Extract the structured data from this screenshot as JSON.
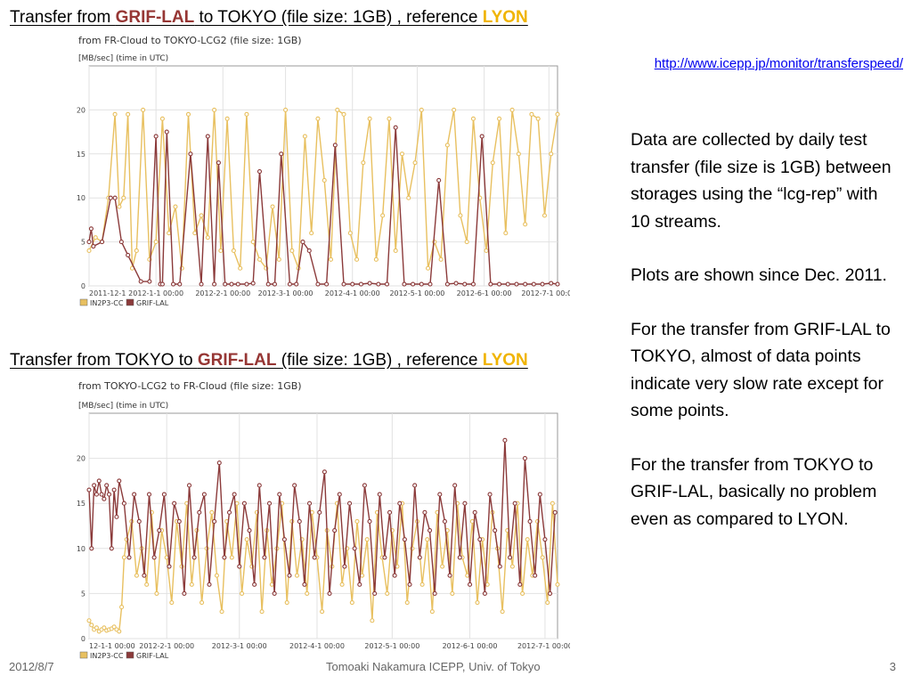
{
  "headings": [
    {
      "before": "Transfer from ",
      "em1": "GRIF-LAL",
      "middle": " to TOKYO (file size: 1GB) , reference ",
      "em2": "LYON"
    },
    {
      "before": "Transfer from TOKYO to ",
      "em1": "GRIF-LAL",
      "middle": " (file size: 1GB) , reference ",
      "em2": "LYON"
    }
  ],
  "link": {
    "text": "http://www.icepp.jp/monitor/transferspeed/"
  },
  "notes": [
    "Data are collected by daily test transfer (file size is 1GB) between storages using the “lcg-rep” with 10 streams.",
    "Plots are shown since Dec. 2011.",
    "For the transfer from GRIF-LAL to TOKYO, almost of data points indicate very slow rate except for some points.",
    "For the transfer from TOKYO to GRIF-LAL, basically no problem even as compared to LYON."
  ],
  "footer": {
    "date": "2012/8/7",
    "author": "Tomoaki Nakamura     ICEPP, Univ. of Tokyo",
    "page": "3"
  },
  "colors": {
    "in2p3": "#e8c060",
    "grif": "#8b3a3a",
    "grid": "#e2e2e2",
    "accent_grif": "#963634",
    "accent_lyon": "#f0b400"
  },
  "chart_data": [
    {
      "type": "line",
      "title": "from FR-Cloud to TOKYO-LCG2 (file size: 1GB)",
      "ylabel": "[MB/sec] (time in UTC)",
      "ylim": [
        0,
        25
      ],
      "yticks": [
        0,
        5,
        10,
        15,
        20
      ],
      "xticks": [
        "2011-12-1",
        "2012-1-1 00:00",
        "2012-2-1 00:00",
        "2012-3-1 00:00",
        "2012-4-1 00:00",
        "2012-5-1 00:00",
        "2012-6-1 00:00",
        "2012-7-1 00:00"
      ],
      "xtick_days": [
        0,
        31,
        62,
        91,
        122,
        152,
        183,
        213
      ],
      "x_days_span": 217,
      "grid": true,
      "legend_position": "bottom-left",
      "series": [
        {
          "name": "IN2P3-CC",
          "color": "#e8c060",
          "x": [
            0,
            3,
            6,
            9,
            12,
            14,
            16,
            18,
            20,
            22,
            25,
            28,
            31,
            34,
            37,
            40,
            43,
            46,
            49,
            52,
            55,
            58,
            61,
            64,
            67,
            70,
            73,
            76,
            79,
            82,
            85,
            88,
            91,
            94,
            97,
            100,
            103,
            106,
            109,
            112,
            115,
            118,
            121,
            124,
            127,
            130,
            133,
            136,
            139,
            142,
            145,
            148,
            151,
            154,
            157,
            160,
            163,
            166,
            169,
            172,
            175,
            178,
            181,
            184,
            187,
            190,
            193,
            196,
            199,
            202,
            205,
            208,
            211,
            214,
            217
          ],
          "values": [
            4,
            5.5,
            5,
            10,
            19.5,
            9,
            10,
            19.5,
            2,
            4,
            20,
            3,
            5,
            19,
            6,
            9,
            2,
            19.5,
            6,
            8,
            5.5,
            20,
            4,
            19,
            4,
            2,
            19.5,
            5,
            3,
            2,
            9,
            3,
            20,
            4,
            2,
            17,
            6,
            19,
            12,
            3,
            20,
            19.5,
            6,
            3,
            14,
            19,
            3,
            8,
            19,
            4,
            15,
            10,
            14,
            20,
            2,
            5,
            3,
            16,
            20,
            8,
            5,
            19,
            10,
            4,
            14,
            19,
            6,
            20,
            15,
            7,
            19.5,
            19,
            8,
            15,
            19.5
          ]
        },
        {
          "name": "GRIF-LAL",
          "color": "#8b3a3a",
          "x": [
            0,
            1,
            2,
            6,
            10,
            12,
            15,
            18,
            24,
            28,
            31,
            33,
            34,
            36,
            39,
            42,
            47,
            52,
            55,
            58,
            60,
            63,
            66,
            69,
            73,
            76,
            79,
            83,
            86,
            89,
            93,
            96,
            99,
            102,
            106,
            110,
            114,
            118,
            122,
            126,
            130,
            134,
            138,
            142,
            146,
            150,
            154,
            158,
            162,
            166,
            170,
            174,
            178,
            182,
            186,
            190,
            194,
            198,
            202,
            206,
            210,
            214,
            217
          ],
          "values": [
            5,
            6.5,
            4.5,
            5,
            10,
            10,
            5,
            3.5,
            0.5,
            0.5,
            17,
            0.2,
            0.2,
            17.5,
            0.2,
            0.2,
            15,
            0.2,
            17,
            0.2,
            14,
            0.2,
            0.2,
            0.2,
            0.2,
            0.3,
            13,
            0.2,
            0.2,
            15,
            0.2,
            0.2,
            5,
            4,
            0.2,
            0.2,
            16,
            0.2,
            0.2,
            0.2,
            0.3,
            0.2,
            0.2,
            18,
            0.2,
            0.2,
            0.2,
            0.2,
            12,
            0.2,
            0.3,
            0.2,
            0.2,
            17,
            0.2,
            0.2,
            0.2,
            0.2,
            0.2,
            0.2,
            0.2,
            0.3,
            0.2
          ]
        }
      ]
    },
    {
      "type": "line",
      "title": "from TOKYO-LCG2 to FR-Cloud (file size: 1GB)",
      "ylabel": "[MB/sec] (time in UTC)",
      "ylim": [
        0,
        25
      ],
      "yticks": [
        0,
        5,
        10,
        15,
        20
      ],
      "xticks": [
        "12-1-1 00:00",
        "2012-2-1 00:00",
        "2012-3-1 00:00",
        "2012-4-1 00:00",
        "2012-5-1 00:00",
        "2012-6-1 00:00",
        "2012-7-1 00:00"
      ],
      "xtick_days": [
        31,
        62,
        91,
        122,
        152,
        183,
        213
      ],
      "x_days_span": 218,
      "x_start_day": 31,
      "grid": true,
      "legend_position": "bottom-left",
      "series": [
        {
          "name": "IN2P3-CC",
          "color": "#e8c060",
          "x": [
            31,
            32,
            33,
            34,
            35,
            36,
            37,
            38,
            39,
            40,
            41,
            42,
            43,
            44,
            45,
            46,
            48,
            50,
            52,
            54,
            56,
            58,
            60,
            62,
            64,
            66,
            68,
            70,
            72,
            74,
            76,
            78,
            80,
            82,
            84,
            86,
            88,
            90,
            92,
            94,
            96,
            98,
            100,
            102,
            104,
            106,
            108,
            110,
            112,
            114,
            116,
            118,
            120,
            122,
            124,
            126,
            128,
            130,
            132,
            134,
            136,
            138,
            140,
            142,
            144,
            146,
            148,
            150,
            152,
            154,
            156,
            158,
            160,
            162,
            164,
            166,
            168,
            170,
            172,
            174,
            176,
            178,
            180,
            182,
            184,
            186,
            188,
            190,
            192,
            194,
            196,
            198,
            200,
            202,
            204,
            206,
            208,
            210,
            212,
            214,
            216,
            218
          ],
          "values": [
            2,
            1.5,
            1,
            1.2,
            0.8,
            1,
            1.2,
            0.9,
            1,
            1.1,
            1.3,
            1,
            0.8,
            3.5,
            9,
            11,
            13,
            7,
            10,
            6,
            14,
            5,
            12,
            9,
            4,
            13,
            8,
            15,
            6,
            12,
            4,
            10,
            14,
            7,
            3,
            13,
            9,
            15,
            5,
            11,
            8,
            14,
            3,
            12,
            6,
            10,
            15,
            4,
            13,
            7,
            11,
            5,
            14,
            9,
            3,
            12,
            8,
            15,
            6,
            10,
            4,
            13,
            7,
            11,
            2,
            14,
            9,
            5,
            12,
            8,
            15,
            4,
            10,
            13,
            6,
            11,
            3,
            14,
            8,
            12,
            5,
            15,
            9,
            7,
            13,
            4,
            11,
            6,
            14,
            10,
            3,
            12,
            8,
            15,
            5,
            11,
            7,
            13,
            9,
            4,
            15,
            6
          ]
        },
        {
          "name": "GRIF-LAL",
          "color": "#8b3a3a",
          "x": [
            31,
            32,
            33,
            34,
            35,
            36,
            37,
            38,
            39,
            40,
            41,
            42,
            43,
            45,
            47,
            49,
            51,
            53,
            55,
            57,
            59,
            61,
            63,
            65,
            67,
            69,
            71,
            73,
            75,
            77,
            79,
            81,
            83,
            85,
            87,
            89,
            91,
            93,
            95,
            97,
            99,
            101,
            103,
            105,
            107,
            109,
            111,
            113,
            115,
            117,
            119,
            121,
            123,
            125,
            127,
            129,
            131,
            133,
            135,
            137,
            139,
            141,
            143,
            145,
            147,
            149,
            151,
            153,
            155,
            157,
            159,
            161,
            163,
            165,
            167,
            169,
            171,
            173,
            175,
            177,
            179,
            181,
            183,
            185,
            187,
            189,
            191,
            193,
            195,
            197,
            199,
            201,
            203,
            205,
            207,
            209,
            211,
            213,
            215,
            217
          ],
          "values": [
            16.5,
            10,
            17,
            16,
            17.5,
            16,
            15.5,
            17,
            16,
            10,
            16.5,
            13.5,
            17.5,
            15,
            9,
            16,
            13,
            7,
            16,
            9,
            12,
            16,
            8,
            15,
            13,
            5,
            17,
            9,
            14,
            16,
            6,
            13,
            19.5,
            9,
            14,
            16,
            8,
            15,
            12,
            6,
            17,
            9,
            15,
            5,
            16,
            11,
            7,
            17,
            13,
            6,
            15,
            9,
            14,
            18.5,
            5,
            12,
            16,
            8,
            15,
            10,
            6,
            17,
            13,
            5,
            16,
            9,
            14,
            7,
            15,
            11,
            6,
            17,
            9,
            14,
            12,
            5,
            16,
            13,
            7,
            17,
            9,
            15,
            6,
            14,
            11,
            5,
            16,
            12,
            8,
            22,
            9,
            15,
            6,
            20,
            13,
            7,
            16,
            11,
            5,
            14
          ]
        }
      ]
    }
  ]
}
